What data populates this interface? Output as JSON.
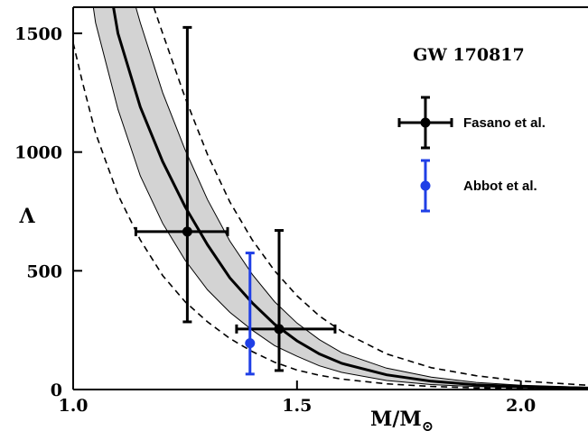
{
  "chart_data": {
    "type": "line",
    "title": "GW 170817",
    "xlabel": "M/M",
    "xlabel_sub": "⊙",
    "ylabel": "Λ",
    "xlim": [
      1.0,
      2.15
    ],
    "ylim": [
      0,
      1610
    ],
    "xticks": [
      {
        "value": 1.0,
        "label": "1.0"
      },
      {
        "value": 1.5,
        "label": "1.5"
      },
      {
        "value": 2.0,
        "label": "2.0"
      }
    ],
    "yticks": [
      {
        "value": 0,
        "label": "0"
      },
      {
        "value": 500,
        "label": "500"
      },
      {
        "value": 1000,
        "label": "1000"
      },
      {
        "value": 1500,
        "label": "1500"
      }
    ],
    "grid": false,
    "legend_position": "right",
    "series": [
      {
        "style": "solid-thick",
        "points": [
          [
            1.09,
            1610
          ],
          [
            1.1,
            1500
          ],
          [
            1.15,
            1190
          ],
          [
            1.2,
            960
          ],
          [
            1.25,
            770
          ],
          [
            1.3,
            610
          ],
          [
            1.35,
            470
          ],
          [
            1.4,
            365
          ],
          [
            1.45,
            275
          ],
          [
            1.5,
            205
          ],
          [
            1.55,
            150
          ],
          [
            1.6,
            110
          ],
          [
            1.7,
            62
          ],
          [
            1.8,
            35
          ],
          [
            1.9,
            20
          ],
          [
            2.0,
            12
          ],
          [
            2.15,
            6
          ]
        ]
      },
      {
        "style": "band-upper",
        "points": [
          [
            1.14,
            1610
          ],
          [
            1.15,
            1545
          ],
          [
            1.2,
            1250
          ],
          [
            1.25,
            1010
          ],
          [
            1.3,
            800
          ],
          [
            1.35,
            625
          ],
          [
            1.4,
            485
          ],
          [
            1.45,
            370
          ],
          [
            1.5,
            280
          ],
          [
            1.55,
            210
          ],
          [
            1.6,
            155
          ],
          [
            1.7,
            90
          ],
          [
            1.8,
            52
          ],
          [
            1.9,
            30
          ],
          [
            2.0,
            18
          ],
          [
            2.15,
            9
          ]
        ]
      },
      {
        "style": "band-lower",
        "points": [
          [
            1.045,
            1610
          ],
          [
            1.05,
            1545
          ],
          [
            1.1,
            1180
          ],
          [
            1.15,
            900
          ],
          [
            1.2,
            700
          ],
          [
            1.25,
            545
          ],
          [
            1.3,
            420
          ],
          [
            1.35,
            325
          ],
          [
            1.4,
            250
          ],
          [
            1.45,
            185
          ],
          [
            1.5,
            140
          ],
          [
            1.55,
            100
          ],
          [
            1.6,
            72
          ],
          [
            1.7,
            38
          ],
          [
            1.8,
            21
          ],
          [
            1.9,
            12
          ],
          [
            2.0,
            7
          ],
          [
            2.15,
            3
          ]
        ]
      },
      {
        "style": "dashed-upper",
        "points": [
          [
            1.18,
            1610
          ],
          [
            1.2,
            1500
          ],
          [
            1.25,
            1230
          ],
          [
            1.3,
            990
          ],
          [
            1.35,
            790
          ],
          [
            1.4,
            630
          ],
          [
            1.45,
            500
          ],
          [
            1.5,
            395
          ],
          [
            1.55,
            310
          ],
          [
            1.6,
            245
          ],
          [
            1.7,
            150
          ],
          [
            1.8,
            92
          ],
          [
            1.9,
            58
          ],
          [
            2.0,
            36
          ],
          [
            2.15,
            18
          ]
        ]
      },
      {
        "style": "dashed-lower",
        "points": [
          [
            1.0,
            1460
          ],
          [
            1.02,
            1300
          ],
          [
            1.05,
            1080
          ],
          [
            1.1,
            820
          ],
          [
            1.15,
            630
          ],
          [
            1.2,
            480
          ],
          [
            1.25,
            370
          ],
          [
            1.3,
            285
          ],
          [
            1.35,
            215
          ],
          [
            1.4,
            160
          ],
          [
            1.45,
            115
          ],
          [
            1.5,
            82
          ],
          [
            1.55,
            60
          ],
          [
            1.6,
            44
          ],
          [
            1.7,
            24
          ],
          [
            1.8,
            13
          ],
          [
            1.9,
            7
          ],
          [
            2.0,
            4
          ],
          [
            2.15,
            2
          ]
        ]
      }
    ],
    "error_points": [
      {
        "group": "Fasano et al.",
        "color": "#000000",
        "x": 1.255,
        "y": 665,
        "xerr": [
          1.14,
          1.345
        ],
        "yerr": [
          285,
          1525
        ]
      },
      {
        "group": "Fasano et al.",
        "color": "#000000",
        "x": 1.46,
        "y": 255,
        "xerr": [
          1.365,
          1.585
        ],
        "yerr": [
          80,
          670
        ]
      },
      {
        "group": "Abbot et al.",
        "color": "#1f3fe6",
        "x": 1.395,
        "y": 195,
        "xerr": null,
        "yerr": [
          65,
          575
        ]
      }
    ],
    "legend": [
      {
        "label": "Fasano et al.",
        "color": "#000000",
        "has_xerr": true
      },
      {
        "label": "Abbot et al.",
        "color": "#1f3fe6",
        "has_xerr": false
      }
    ]
  }
}
